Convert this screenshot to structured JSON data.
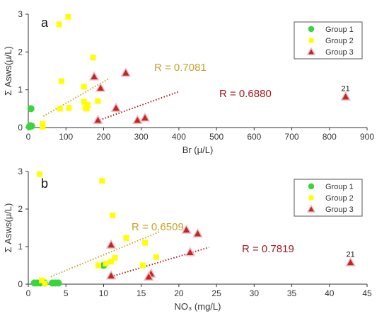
{
  "colors": {
    "group1": "#3cd43c",
    "group2": "#ffff00",
    "group3": "#c0281e",
    "group3_edge": "#f3b6c6",
    "r_group2": "#c9a227",
    "r_group3": "#a31c1c",
    "axis": "#333333"
  },
  "chart_data": [
    {
      "type": "scatter",
      "panel_label": "a",
      "xlabel": "Br (μ/L)",
      "ylabel": "Σ Asws(μ/L)",
      "xlim": [
        0,
        900
      ],
      "ylim": [
        0,
        3
      ],
      "xticks": [
        "0",
        "100",
        "200",
        "300",
        "400",
        "500",
        "600",
        "700",
        "800",
        "900"
      ],
      "yticks": [
        "0",
        "1",
        "2",
        "3"
      ],
      "legend": {
        "position": "top-right"
      },
      "series": [
        {
          "name": "Group 1",
          "marker": "circle",
          "points": [
            [
              3,
              0.02
            ],
            [
              5,
              0.05
            ],
            [
              7,
              0.5
            ],
            [
              9,
              0.04
            ]
          ]
        },
        {
          "name": "Group 2",
          "marker": "square",
          "points": [
            [
              38,
              0.1
            ],
            [
              38,
              0.02
            ],
            [
              82,
              2.73
            ],
            [
              106,
              2.93
            ],
            [
              172,
              1.85
            ],
            [
              88,
              1.23
            ],
            [
              84,
              0.5
            ],
            [
              108,
              0.52
            ],
            [
              148,
              0.68
            ],
            [
              152,
              0.52
            ],
            [
              148,
              1.08
            ],
            [
              158,
              0.6
            ],
            [
              155,
              0.5
            ],
            [
              185,
              0.7
            ]
          ]
        },
        {
          "name": "Group 3",
          "marker": "triangle",
          "points": [
            [
              175,
              1.35
            ],
            [
              185,
              0.2
            ],
            [
              192,
              1.05
            ],
            [
              259,
              1.45
            ],
            [
              233,
              0.52
            ],
            [
              290,
              0.2
            ],
            [
              310,
              0.26
            ],
            [
              843,
              0.82
            ]
          ]
        }
      ],
      "fits": [
        {
          "label": "R = 0.7081",
          "series": "Group 2",
          "x": [
            40,
            215
          ],
          "y": [
            0.3,
            1.3
          ]
        },
        {
          "label": "R = 0.6880",
          "series": "Group 3",
          "x": [
            190,
            400
          ],
          "y": [
            0.2,
            0.95
          ]
        }
      ],
      "annotations": [
        {
          "text": "21",
          "x": 843,
          "y": 0.82
        }
      ]
    },
    {
      "type": "scatter",
      "panel_label": "b",
      "xlabel": "NO₃ (mg/L)",
      "ylabel": "Σ Asws(μ/L)",
      "xlim": [
        0,
        45
      ],
      "ylim": [
        0,
        3
      ],
      "xticks": [
        "0",
        "5",
        "10",
        "15",
        "20",
        "25",
        "30",
        "35",
        "40",
        "45"
      ],
      "yticks": [
        "0",
        "1",
        "2",
        "3"
      ],
      "legend": {
        "position": "top-right"
      },
      "series": [
        {
          "name": "Group 1",
          "marker": "circle",
          "points": [
            [
              0.8,
              0.03
            ],
            [
              1.2,
              0.03
            ],
            [
              1.6,
              0.03
            ],
            [
              2.2,
              0.03
            ],
            [
              3.2,
              0.03
            ],
            [
              3.6,
              0.03
            ],
            [
              4.0,
              0.03
            ],
            [
              10.0,
              0.5
            ]
          ]
        },
        {
          "name": "Group 2",
          "marker": "square",
          "points": [
            [
              1.8,
              0.1
            ],
            [
              2.2,
              0.02
            ],
            [
              1.5,
              2.93
            ],
            [
              9.8,
              2.75
            ],
            [
              11.2,
              1.83
            ],
            [
              13.0,
              1.23
            ],
            [
              9.3,
              0.5
            ],
            [
              10.3,
              0.55
            ],
            [
              11.0,
              0.6
            ],
            [
              11.5,
              0.7
            ],
            [
              15.5,
              1.1
            ],
            [
              15.2,
              0.5
            ],
            [
              17.0,
              0.72
            ]
          ]
        },
        {
          "name": "Group 3",
          "marker": "triangle",
          "points": [
            [
              11.0,
              1.05
            ],
            [
              11.0,
              0.23
            ],
            [
              16.3,
              0.28
            ],
            [
              16.0,
              0.2
            ],
            [
              21.0,
              1.45
            ],
            [
              22.5,
              1.35
            ],
            [
              21.5,
              0.85
            ],
            [
              42.8,
              0.58
            ]
          ]
        }
      ],
      "fits": [
        {
          "label": "R = 0.6509",
          "series": "Group 2",
          "x": [
            3,
            17.5
          ],
          "y": [
            0.2,
            1.4
          ]
        },
        {
          "label": "R = 0.7819",
          "series": "Group 3",
          "x": [
            11,
            24
          ],
          "y": [
            0.2,
            0.98
          ]
        }
      ],
      "annotations": [
        {
          "text": "21",
          "x": 42.8,
          "y": 0.58
        }
      ]
    }
  ]
}
